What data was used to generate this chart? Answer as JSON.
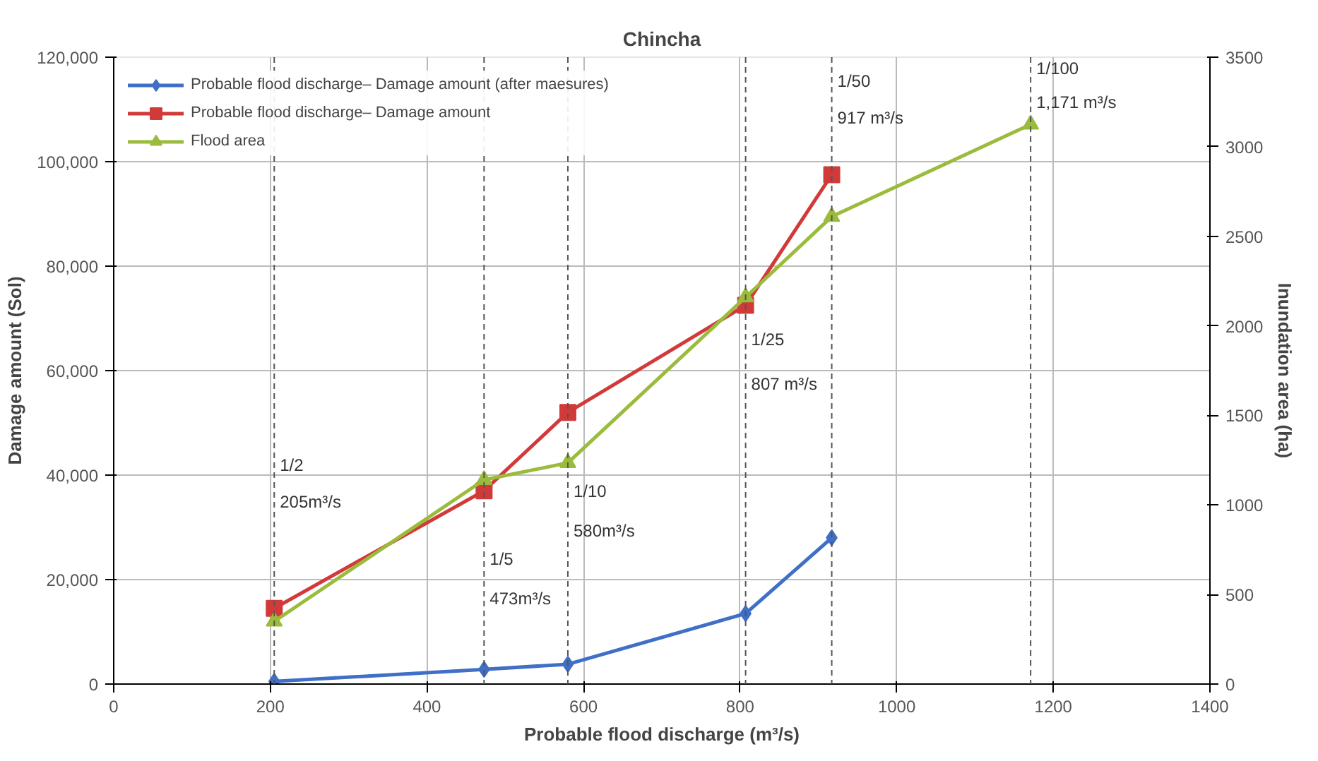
{
  "chart_data": {
    "type": "line",
    "title": "Chincha",
    "xlabel": "Probable flood discharge (m³/s)",
    "ylabel": "Damage amount (Sol)",
    "y2label": "Inundation area (ha)",
    "xlim": [
      0,
      1400
    ],
    "xticks": [
      0,
      200,
      400,
      600,
      800,
      1000,
      1200,
      1400
    ],
    "ylim": [
      0,
      120000
    ],
    "yticks": [
      0,
      {
        "value": 20000,
        "label": "20,000"
      },
      {
        "value": 40000,
        "label": "40,000"
      },
      {
        "value": 60000,
        "label": "60,000"
      },
      {
        "value": 80000,
        "label": "80,000"
      },
      {
        "value": 100000,
        "label": "100,000"
      },
      {
        "value": 120000,
        "label": "120,000"
      }
    ],
    "y2lim": [
      0,
      3500
    ],
    "y2ticks": [
      0,
      500,
      1000,
      1500,
      2000,
      2500,
      3000,
      3500
    ],
    "grid": true,
    "legend": "top left",
    "series": [
      {
        "name": "Probable flood discharge– Damage amount (after maesures)",
        "color": "#3f6fc6",
        "marker": "diamond",
        "x": [
          205,
          473,
          580,
          807,
          917
        ],
        "values": [
          500,
          2800,
          3800,
          13500,
          28000
        ]
      },
      {
        "name": "Probable flood discharge– Damage amount",
        "color": "#d23a3a",
        "marker": "square",
        "x": [
          205,
          473,
          580,
          807,
          917
        ],
        "values": [
          14500,
          37000,
          52000,
          72500,
          97500
        ]
      },
      {
        "name": "Flood area",
        "color": "#9bbb3c",
        "marker": "triangle",
        "axis": "y2",
        "x": [
          205,
          473,
          580,
          807,
          917,
          1171
        ],
        "values": [
          350,
          1140,
          1235,
          2160,
          2610,
          3125
        ]
      }
    ],
    "ref_lines": [
      {
        "axis": "x",
        "value": 205,
        "line_style": "dashed",
        "color": "#555555"
      },
      {
        "axis": "x",
        "value": 473,
        "line_style": "dashed",
        "color": "#555555"
      },
      {
        "axis": "x",
        "value": 580,
        "line_style": "dashed",
        "color": "#555555"
      },
      {
        "axis": "x",
        "value": 807,
        "line_style": "dashed",
        "color": "#555555"
      },
      {
        "axis": "x",
        "value": 917,
        "line_style": "dashed",
        "color": "#555555"
      },
      {
        "axis": "x",
        "value": 1171,
        "line_style": "dashed",
        "color": "#555555"
      }
    ],
    "annotations": [
      {
        "text": "1/2",
        "x": 205,
        "y": 40000
      },
      {
        "text": "205m³/s",
        "x": 205,
        "y": 33000
      },
      {
        "text": "1/5",
        "x": 473,
        "y": 22000
      },
      {
        "text": "473m³/s",
        "x": 473,
        "y": 14500
      },
      {
        "text": "1/10",
        "x": 580,
        "y": 35000
      },
      {
        "text": "580m³/s",
        "x": 580,
        "y": 27500
      },
      {
        "text": "1/25",
        "x": 807,
        "y": 64000
      },
      {
        "text": "807 m³/s",
        "x": 807,
        "y": 55500
      },
      {
        "text": "1/50",
        "x": 917,
        "y": 113500
      },
      {
        "text": "917 m³/s",
        "x": 917,
        "y": 106500
      },
      {
        "text": "1/100",
        "x": 1171,
        "y": 116000
      },
      {
        "text": "1,171 m³/s",
        "x": 1171,
        "y": 109500
      }
    ]
  }
}
